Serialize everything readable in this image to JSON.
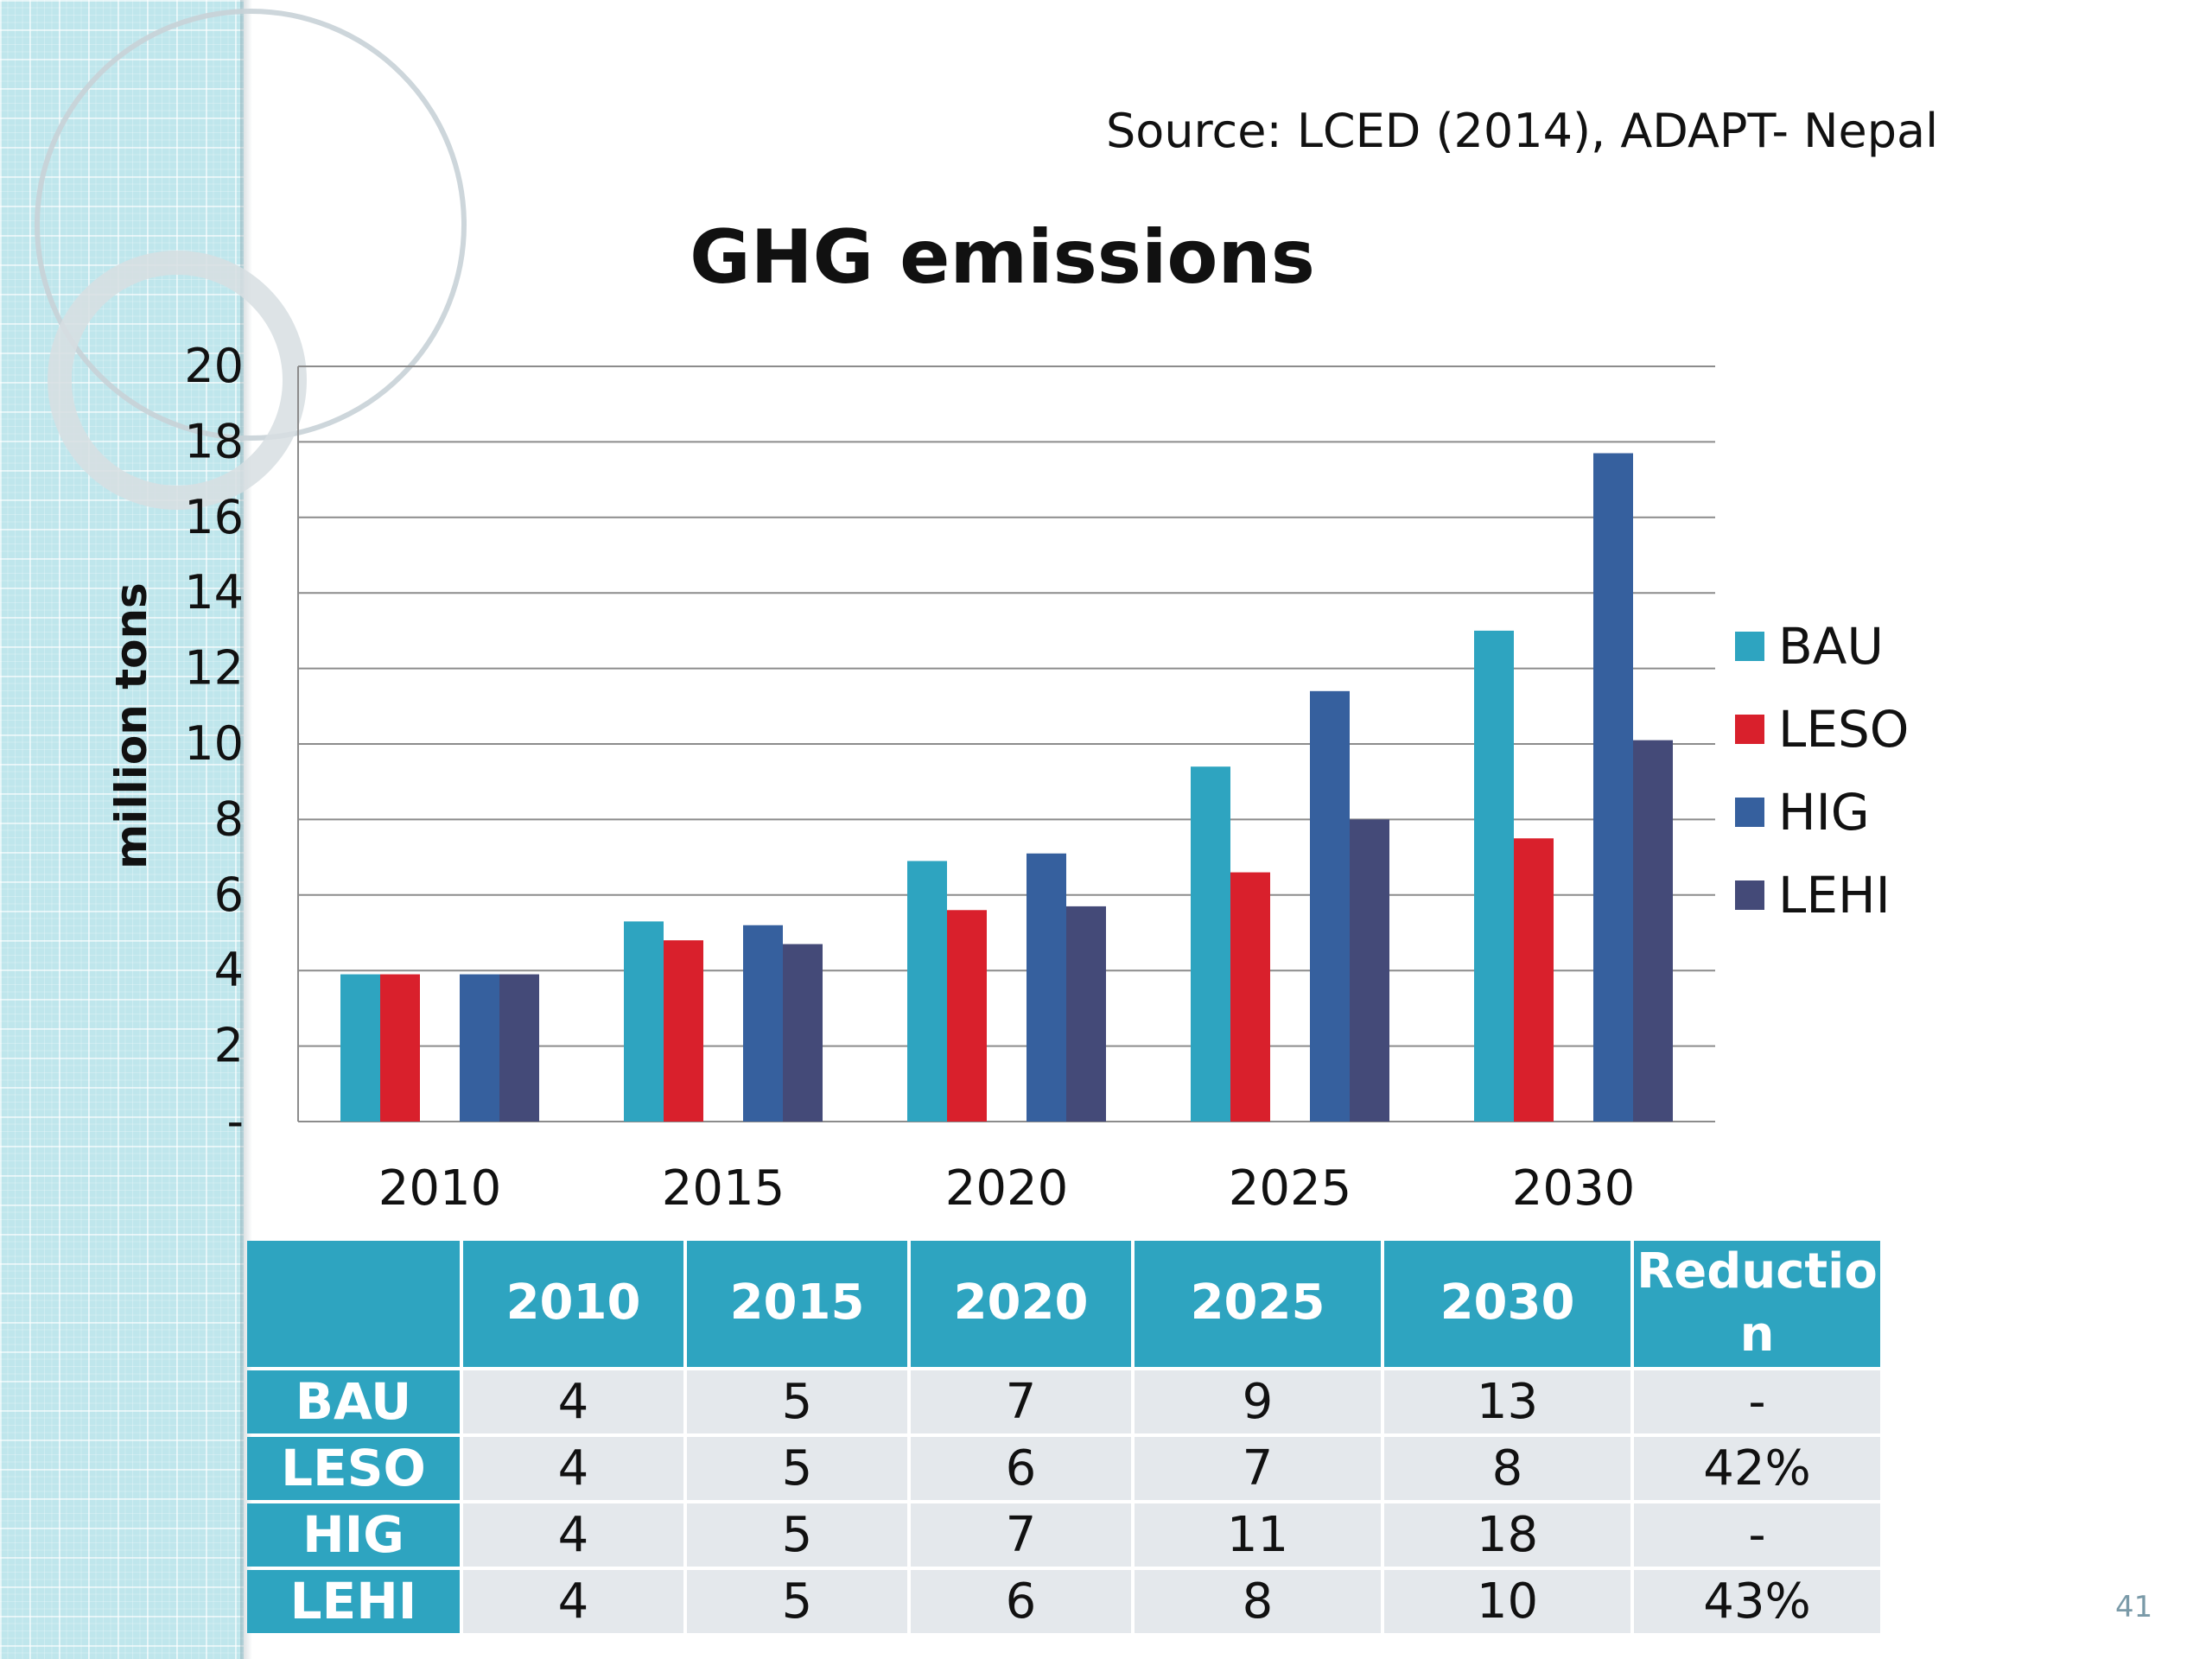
{
  "slide": {
    "source": "Source: LCED (2014), ADAPT- Nepal",
    "page_number": "41"
  },
  "chart_data": {
    "type": "bar",
    "title": "GHG emissions",
    "xlabel": "",
    "ylabel": "million tons",
    "categories": [
      "2010",
      "2015",
      "2020",
      "2025",
      "2030"
    ],
    "series": [
      {
        "name": "BAU",
        "color": "#2ea4c0",
        "values": [
          3.9,
          5.3,
          6.9,
          9.4,
          13.0
        ]
      },
      {
        "name": "LESO",
        "color": "#d9202c",
        "values": [
          3.9,
          4.8,
          5.6,
          6.6,
          7.5
        ]
      },
      {
        "name": "HIG",
        "color": "#36609e",
        "values": [
          3.9,
          5.2,
          7.1,
          11.4,
          17.7
        ]
      },
      {
        "name": "LEHI",
        "color": "#444a78",
        "values": [
          3.9,
          4.7,
          5.7,
          8.0,
          10.1
        ]
      }
    ],
    "ylim": [
      0,
      20
    ],
    "y_ticks": [
      {
        "value": 0,
        "label": "-"
      },
      {
        "value": 2,
        "label": "2"
      },
      {
        "value": 4,
        "label": "4"
      },
      {
        "value": 6,
        "label": "6"
      },
      {
        "value": 8,
        "label": "8"
      },
      {
        "value": 10,
        "label": "10"
      },
      {
        "value": 12,
        "label": "12"
      },
      {
        "value": 14,
        "label": "14"
      },
      {
        "value": 16,
        "label": "16"
      },
      {
        "value": 18,
        "label": "18"
      },
      {
        "value": 20,
        "label": "20"
      }
    ],
    "grid": true,
    "legend_position": "right"
  },
  "table": {
    "headers": [
      "",
      "2010",
      "2015",
      "2020",
      "2025",
      "2030",
      "Reductio\nn"
    ],
    "rows": [
      {
        "label": "BAU",
        "cells": [
          "4",
          "5",
          "7",
          "9",
          "13",
          "-"
        ]
      },
      {
        "label": "LESO",
        "cells": [
          "4",
          "5",
          "6",
          "7",
          "8",
          "42%"
        ]
      },
      {
        "label": "HIG",
        "cells": [
          "4",
          "5",
          "7",
          "11",
          "18",
          "-"
        ]
      },
      {
        "label": "LEHI",
        "cells": [
          "4",
          "5",
          "6",
          "8",
          "10",
          "43%"
        ]
      }
    ]
  }
}
